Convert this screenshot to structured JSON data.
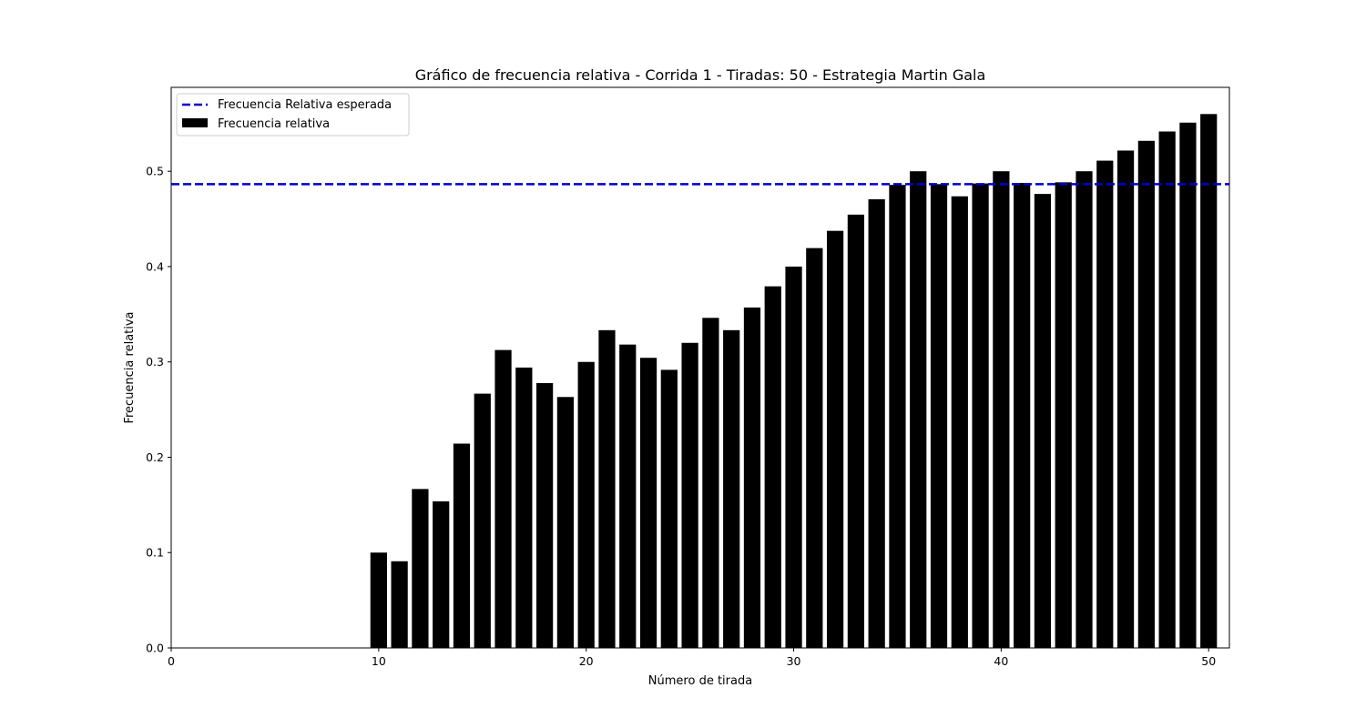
{
  "chart_data": {
    "type": "bar",
    "title": "Gráfico de frecuencia relativa - Corrida 1 - Tiradas: 50 - Estrategia Martin Gala",
    "xlabel": "Número de tirada",
    "ylabel": "Frecuencia relativa",
    "xlim": [
      0,
      51
    ],
    "ylim": [
      0,
      0.588
    ],
    "xticks": [
      0,
      10,
      20,
      30,
      40,
      50
    ],
    "yticks": [
      0.0,
      0.1,
      0.2,
      0.3,
      0.4,
      0.5
    ],
    "xtick_labels": [
      "0",
      "10",
      "20",
      "30",
      "40",
      "50"
    ],
    "ytick_labels": [
      "0.0",
      "0.1",
      "0.2",
      "0.3",
      "0.4",
      "0.5"
    ],
    "grid": false,
    "legend_position": "top-left",
    "x": [
      1,
      2,
      3,
      4,
      5,
      6,
      7,
      8,
      9,
      10,
      11,
      12,
      13,
      14,
      15,
      16,
      17,
      18,
      19,
      20,
      21,
      22,
      23,
      24,
      25,
      26,
      27,
      28,
      29,
      30,
      31,
      32,
      33,
      34,
      35,
      36,
      37,
      38,
      39,
      40,
      41,
      42,
      43,
      44,
      45,
      46,
      47,
      48,
      49,
      50
    ],
    "series": [
      {
        "name": "Frecuencia relativa",
        "color": "#000000",
        "values": [
          0,
          0,
          0,
          0,
          0,
          0,
          0,
          0,
          0,
          0.1,
          0.0909,
          0.1667,
          0.1538,
          0.2143,
          0.2667,
          0.3125,
          0.2941,
          0.2778,
          0.2632,
          0.3,
          0.3333,
          0.3182,
          0.3043,
          0.2917,
          0.32,
          0.3462,
          0.3333,
          0.3571,
          0.3793,
          0.4,
          0.4194,
          0.4375,
          0.4545,
          0.4706,
          0.4857,
          0.5,
          0.4865,
          0.4737,
          0.4872,
          0.5,
          0.4878,
          0.4762,
          0.4884,
          0.5,
          0.5111,
          0.5217,
          0.5319,
          0.5417,
          0.551,
          0.56
        ]
      }
    ],
    "reference_line": {
      "name": "Frecuencia Relativa esperada",
      "value": 0.4865,
      "color": "#0000cc",
      "style": "dashed"
    }
  }
}
